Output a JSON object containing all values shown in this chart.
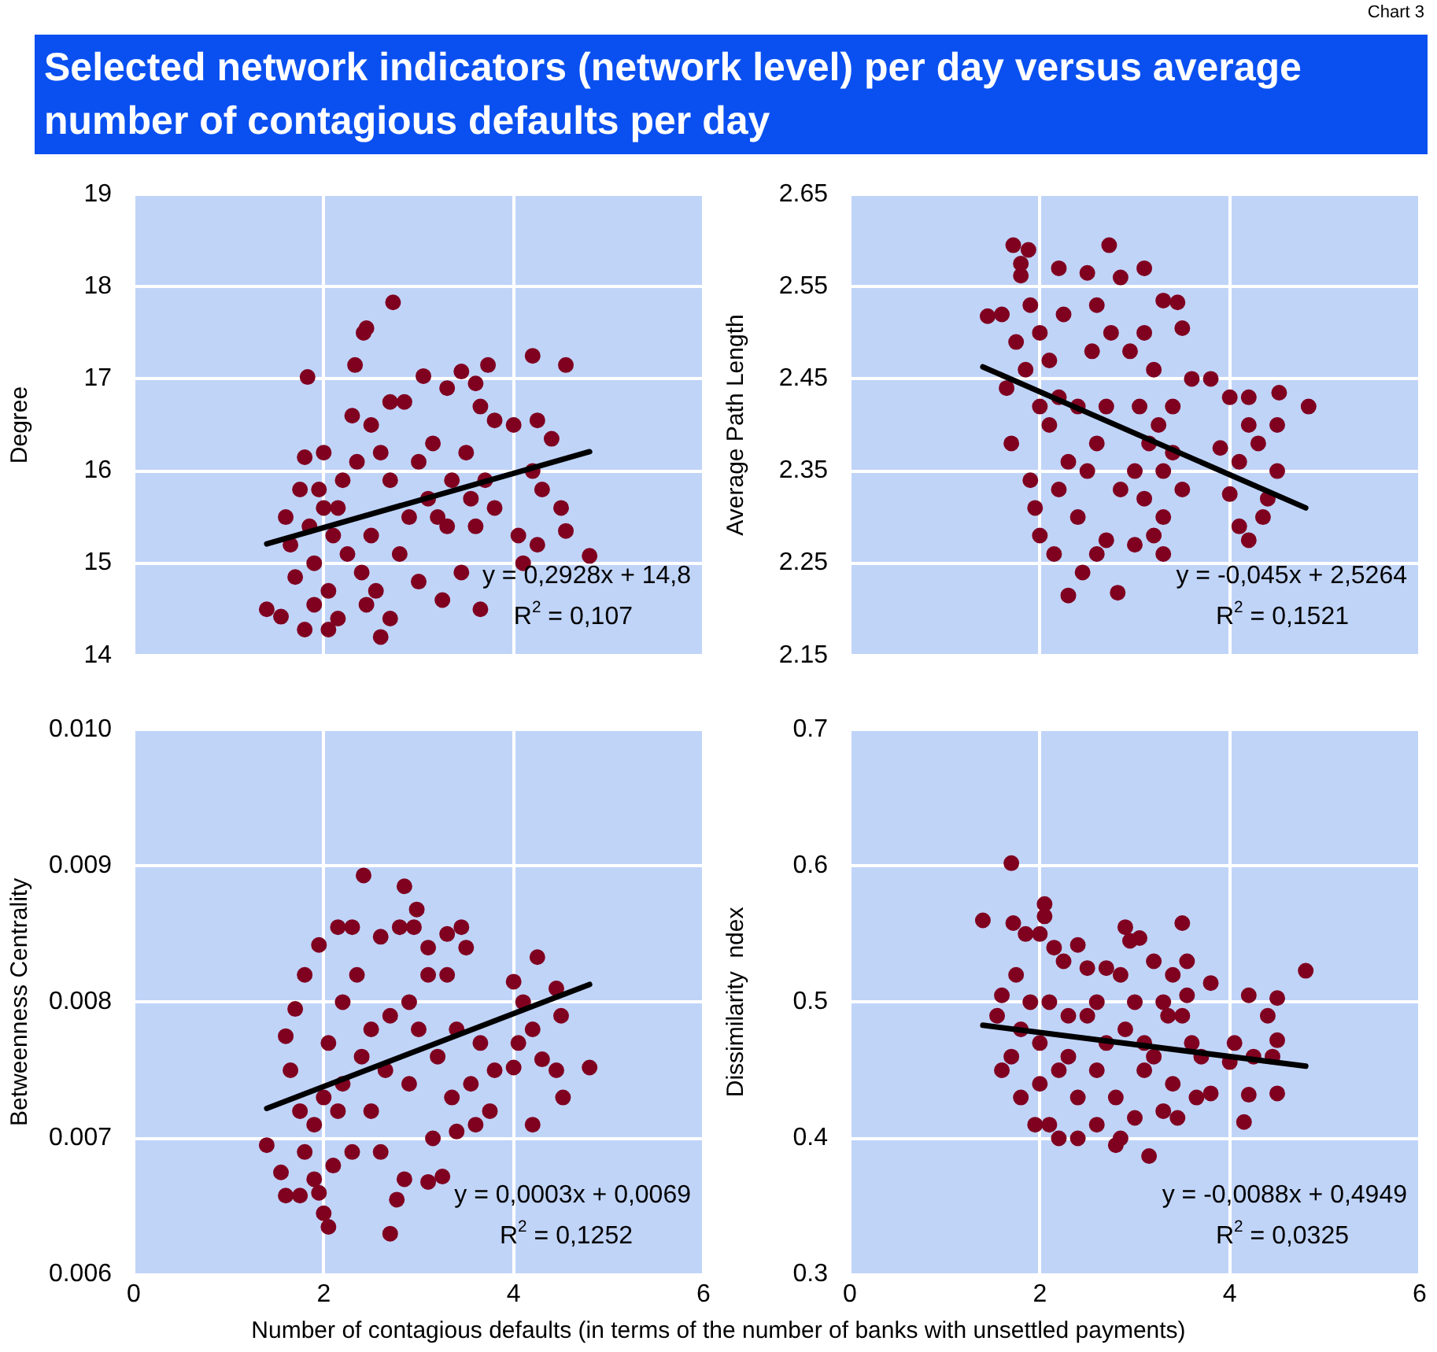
{
  "chart_data": [
    {
      "type": "other",
      "title": "Selected network indicators (network level) per day versus average number of contagious defaults per day",
      "annotations": [
        "Chart 3"
      ]
    },
    {
      "type": "scatter",
      "ylabel": "Degree",
      "xlim": [
        0,
        6
      ],
      "xticks": [
        0,
        2,
        4,
        6
      ],
      "ylim": [
        14,
        19
      ],
      "yticks": [
        14,
        15,
        16,
        17,
        18,
        19
      ],
      "grid": true,
      "marker": "circle",
      "tick_labels": "y",
      "annotations": [
        "y = 0,2928x + 14,8",
        "R$^{2}$ = 0,107"
      ],
      "series": [
        {
          "type": "scatter",
          "color": "#800020",
          "x": [
            2.73,
            2.45,
            2.42,
            1.83,
            2.33,
            4.2,
            4.55,
            3.73,
            3.45,
            3.05,
            3.6,
            4.8,
            1.4,
            1.55,
            1.8,
            2.05,
            2.6,
            2.15,
            2.7,
            3.65,
            4.0,
            4.25,
            4.4,
            4.55,
            4.25,
            4.05,
            4.1,
            3.6,
            3.8,
            3.8,
            3.65,
            2.85,
            2.7,
            3.3,
            3.15,
            3.0,
            2.9,
            2.7,
            2.5,
            2.3,
            2.0,
            1.8,
            1.75,
            1.6,
            1.65,
            1.7,
            1.9,
            2.0,
            2.1,
            2.2,
            2.25,
            2.4,
            2.5,
            2.55,
            2.8,
            3.0,
            3.2,
            3.35,
            3.5,
            3.3,
            3.45,
            3.1,
            2.35,
            1.95,
            1.85,
            2.05,
            2.6,
            3.55,
            3.7,
            4.2,
            4.3,
            4.5,
            2.15,
            1.9,
            2.45,
            3.25
          ],
          "values": [
            17.83,
            17.55,
            17.5,
            17.02,
            17.15,
            17.25,
            17.15,
            17.15,
            17.08,
            17.03,
            16.95,
            15.08,
            14.5,
            14.42,
            14.28,
            14.28,
            14.2,
            14.4,
            14.4,
            14.5,
            16.5,
            16.55,
            16.35,
            15.35,
            15.2,
            15.3,
            15.0,
            15.4,
            15.6,
            16.55,
            16.7,
            16.75,
            16.75,
            16.9,
            16.3,
            16.1,
            15.5,
            15.9,
            16.5,
            16.6,
            16.2,
            16.15,
            15.8,
            15.5,
            15.2,
            14.85,
            15.0,
            15.6,
            15.3,
            15.9,
            15.1,
            14.9,
            15.3,
            14.7,
            15.1,
            14.8,
            15.5,
            15.9,
            16.2,
            15.4,
            14.9,
            15.7,
            16.1,
            15.8,
            15.4,
            14.7,
            16.2,
            15.7,
            15.9,
            16.0,
            15.8,
            15.6,
            15.6,
            14.55,
            14.55,
            14.6
          ]
        },
        {
          "type": "line",
          "color": "#000000",
          "marker": "none",
          "x": [
            1.4,
            4.8
          ],
          "values": [
            15.21,
            16.21
          ]
        }
      ]
    },
    {
      "type": "scatter",
      "ylabel": "Average Path Length",
      "xlim": [
        0,
        6
      ],
      "xticks": [
        0,
        2,
        4,
        6
      ],
      "ylim": [
        2.15,
        2.65
      ],
      "yticks": [
        2.15,
        2.25,
        2.35,
        2.45,
        2.55,
        2.65
      ],
      "grid": true,
      "marker": "circle",
      "tick_labels": "y",
      "annotations": [
        "y = -0,045x + 2,5264",
        "R$^{2}$ = 0,1521"
      ],
      "series": [
        {
          "type": "scatter",
          "color": "#800020",
          "x": [
            1.72,
            1.88,
            2.73,
            3.1,
            1.6,
            1.45,
            2.5,
            2.2,
            1.8,
            1.8,
            2.85,
            3.3,
            3.45,
            3.5,
            4.0,
            4.2,
            4.52,
            4.83,
            4.5,
            4.2,
            4.3,
            4.5,
            4.4,
            4.1,
            4.2,
            4.35,
            4.0,
            4.1,
            3.8,
            3.9,
            3.6,
            3.4,
            3.5,
            3.3,
            3.3,
            3.2,
            3.0,
            2.7,
            2.6,
            2.45,
            2.3,
            2.82,
            2.15,
            2.0,
            1.95,
            1.9,
            1.7,
            1.65,
            1.75,
            1.9,
            2.0,
            2.1,
            2.2,
            2.1,
            2.3,
            2.2,
            2.4,
            2.5,
            2.6,
            2.7,
            2.55,
            2.75,
            2.95,
            3.1,
            3.2,
            3.05,
            3.15,
            3.0,
            3.1,
            3.3,
            3.4,
            3.25,
            2.85,
            2.4,
            2.0,
            1.85,
            2.25,
            2.6
          ],
          "values": [
            2.595,
            2.59,
            2.595,
            2.57,
            2.52,
            2.518,
            2.565,
            2.57,
            2.575,
            2.562,
            2.56,
            2.535,
            2.533,
            2.505,
            2.43,
            2.43,
            2.435,
            2.42,
            2.4,
            2.4,
            2.38,
            2.35,
            2.32,
            2.29,
            2.275,
            2.3,
            2.325,
            2.36,
            2.45,
            2.375,
            2.45,
            2.42,
            2.33,
            2.3,
            2.26,
            2.28,
            2.27,
            2.275,
            2.26,
            2.24,
            2.215,
            2.218,
            2.26,
            2.28,
            2.31,
            2.34,
            2.38,
            2.44,
            2.49,
            2.53,
            2.5,
            2.47,
            2.43,
            2.4,
            2.36,
            2.33,
            2.3,
            2.35,
            2.38,
            2.42,
            2.48,
            2.5,
            2.48,
            2.5,
            2.46,
            2.42,
            2.38,
            2.35,
            2.32,
            2.35,
            2.37,
            2.4,
            2.33,
            2.42,
            2.42,
            2.46,
            2.52,
            2.53
          ]
        },
        {
          "type": "line",
          "color": "#000000",
          "marker": "none",
          "x": [
            1.4,
            4.8
          ],
          "values": [
            2.463,
            2.31
          ]
        }
      ]
    },
    {
      "type": "scatter",
      "ylabel": "Betweenness Centrality",
      "xlabel": "Number of contagious defaults (in terms of the number of banks with unsettled payments)",
      "xlim": [
        0,
        6
      ],
      "xticks": [
        0,
        2,
        4,
        6
      ],
      "ylim": [
        0.006,
        0.01
      ],
      "yticks": [
        0.006,
        0.007,
        0.008,
        0.009,
        {
          "value": 0.01,
          "label": "0.010"
        }
      ],
      "grid": true,
      "marker": "circle",
      "annotations": [
        "y = 0,0003x + 0,0069",
        "R$^{2}$ = 0,1252"
      ],
      "series": [
        {
          "type": "scatter",
          "color": "#800020",
          "x": [
            2.42,
            2.85,
            2.98,
            1.4,
            1.55,
            1.6,
            1.75,
            2.05,
            2.0,
            2.7,
            2.77,
            2.85,
            3.1,
            3.25,
            3.4,
            3.6,
            3.75,
            4.2,
            4.52,
            4.8,
            4.45,
            4.3,
            4.0,
            4.05,
            4.2,
            4.5,
            4.45,
            4.25,
            4.0,
            4.1,
            3.8,
            3.65,
            3.5,
            3.45,
            3.3,
            3.1,
            2.95,
            2.8,
            2.6,
            2.3,
            2.15,
            1.95,
            1.8,
            1.7,
            1.6,
            1.65,
            1.75,
            1.8,
            1.9,
            2.1,
            2.3,
            2.5,
            2.6,
            2.65,
            2.9,
            3.0,
            3.2,
            3.4,
            3.3,
            3.1,
            2.9,
            2.7,
            2.5,
            2.35,
            2.2,
            2.05,
            2.0,
            1.9,
            2.2,
            2.4,
            3.15,
            3.35,
            3.55,
            1.95,
            2.15
          ],
          "values": [
            0.00893,
            0.00885,
            0.00868,
            0.00695,
            0.00675,
            0.00658,
            0.00658,
            0.00635,
            0.00645,
            0.0063,
            0.00655,
            0.0067,
            0.00668,
            0.00672,
            0.00705,
            0.0071,
            0.0072,
            0.0071,
            0.0073,
            0.00752,
            0.0075,
            0.00758,
            0.00752,
            0.0077,
            0.0078,
            0.0079,
            0.0081,
            0.00833,
            0.00815,
            0.008,
            0.0075,
            0.0077,
            0.0084,
            0.00855,
            0.0085,
            0.0084,
            0.00855,
            0.00855,
            0.00848,
            0.00855,
            0.00855,
            0.00842,
            0.0082,
            0.00795,
            0.00775,
            0.0075,
            0.0072,
            0.0069,
            0.0067,
            0.0068,
            0.0069,
            0.0072,
            0.0069,
            0.0075,
            0.0074,
            0.0078,
            0.0076,
            0.0078,
            0.0082,
            0.0082,
            0.008,
            0.0079,
            0.0078,
            0.0082,
            0.008,
            0.0077,
            0.0073,
            0.0071,
            0.0074,
            0.0076,
            0.007,
            0.0073,
            0.0074,
            0.0066,
            0.0072
          ]
        },
        {
          "type": "line",
          "color": "#000000",
          "marker": "none",
          "x": [
            1.4,
            4.8
          ],
          "values": [
            0.00722,
            0.00813
          ]
        }
      ]
    },
    {
      "type": "scatter",
      "ylabel": "Dissimilarity  ndex",
      "xlim": [
        0,
        6
      ],
      "xticks": [
        0,
        2,
        4,
        6
      ],
      "ylim": [
        0.3,
        0.7
      ],
      "yticks": [
        0.3,
        0.4,
        0.5,
        0.6,
        0.7
      ],
      "grid": true,
      "marker": "circle",
      "annotations": [
        "y = -0,0088x + 0,4949",
        "R$^{2}$ = 0,0325"
      ],
      "series": [
        {
          "type": "scatter",
          "color": "#800020",
          "x": [
            1.7,
            1.4,
            1.72,
            2.05,
            2.05,
            2.9,
            3.5,
            2.95,
            3.05,
            4.8,
            4.5,
            4.2,
            4.4,
            4.5,
            4.45,
            4.5,
            4.25,
            4.2,
            4.15,
            4.05,
            4.0,
            3.8,
            3.8,
            3.65,
            3.55,
            3.55,
            3.4,
            3.35,
            3.2,
            3.15,
            3.0,
            2.85,
            2.8,
            2.6,
            2.4,
            2.2,
            2.1,
            1.95,
            1.8,
            1.6,
            1.55,
            1.6,
            1.75,
            1.85,
            2.0,
            2.15,
            2.25,
            2.4,
            2.5,
            2.7,
            2.85,
            3.0,
            3.3,
            3.5,
            3.6,
            3.7,
            3.4,
            3.3,
            3.45,
            3.1,
            2.8,
            2.6,
            2.4,
            2.3,
            2.2,
            2.0,
            1.9,
            1.8,
            1.7,
            2.1,
            2.3,
            2.5,
            2.7,
            2.9,
            3.1,
            3.2,
            2.0,
            2.6
          ],
          "values": [
            0.602,
            0.56,
            0.558,
            0.572,
            0.563,
            0.555,
            0.558,
            0.545,
            0.547,
            0.523,
            0.503,
            0.505,
            0.49,
            0.472,
            0.46,
            0.433,
            0.46,
            0.432,
            0.412,
            0.47,
            0.456,
            0.514,
            0.433,
            0.43,
            0.505,
            0.53,
            0.52,
            0.49,
            0.53,
            0.387,
            0.415,
            0.4,
            0.395,
            0.41,
            0.4,
            0.4,
            0.41,
            0.41,
            0.43,
            0.45,
            0.49,
            0.505,
            0.52,
            0.55,
            0.55,
            0.54,
            0.53,
            0.542,
            0.525,
            0.525,
            0.52,
            0.5,
            0.5,
            0.49,
            0.47,
            0.46,
            0.44,
            0.42,
            0.415,
            0.45,
            0.43,
            0.45,
            0.43,
            0.46,
            0.45,
            0.47,
            0.5,
            0.48,
            0.46,
            0.5,
            0.49,
            0.49,
            0.47,
            0.48,
            0.47,
            0.46,
            0.44,
            0.5
          ]
        },
        {
          "type": "line",
          "color": "#000000",
          "marker": "none",
          "x": [
            1.4,
            4.8
          ],
          "values": [
            0.483,
            0.453
          ]
        }
      ]
    }
  ]
}
